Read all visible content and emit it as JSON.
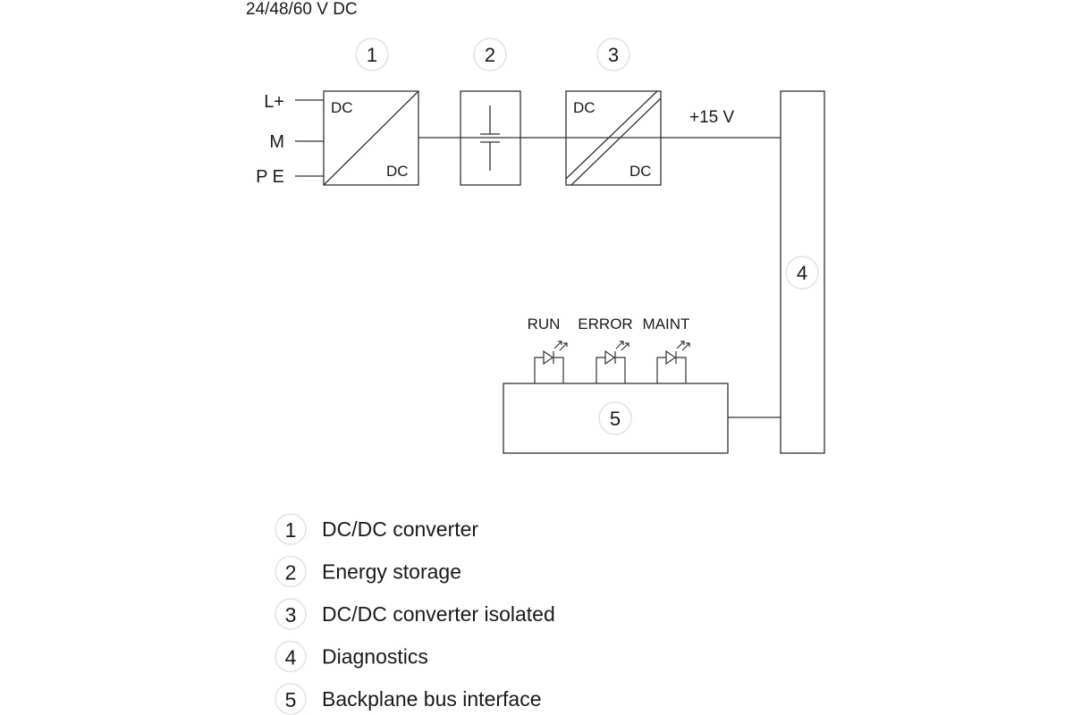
{
  "title": "24/48/60 V DC",
  "inputs": [
    "L+",
    "M",
    "P E"
  ],
  "blocks": {
    "b1": {
      "number": "1",
      "top_label": "DC",
      "bottom_label": "DC"
    },
    "b2": {
      "number": "2"
    },
    "b3": {
      "number": "3",
      "top_label": "DC",
      "bottom_label": "DC"
    },
    "b4": {
      "number": "4"
    },
    "b5": {
      "number": "5"
    }
  },
  "voltage_label": "+15 V",
  "leds": [
    "RUN",
    "ERROR",
    "MAINT"
  ],
  "legend": [
    {
      "number": "1",
      "label": "DC/DC converter"
    },
    {
      "number": "2",
      "label": "Energy storage"
    },
    {
      "number": "3",
      "label": "DC/DC converter isolated"
    },
    {
      "number": "4",
      "label": "Diagnostics"
    },
    {
      "number": "5",
      "label": "Backplane bus interface"
    }
  ]
}
